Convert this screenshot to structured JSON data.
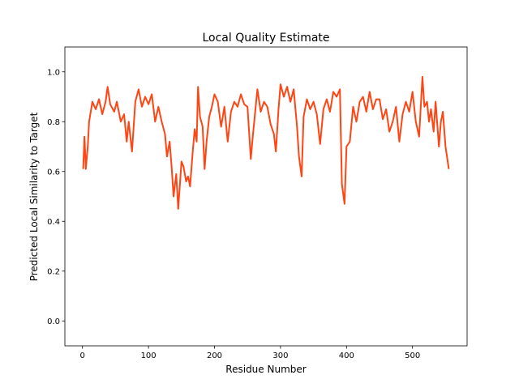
{
  "chart_data": {
    "type": "line",
    "title": "Local Quality Estimate",
    "x_label": "Residue Number",
    "y_label": "Predicted Local Similarity to Target",
    "x": [
      1,
      3,
      5,
      8,
      10,
      15,
      20,
      25,
      30,
      35,
      38,
      42,
      48,
      52,
      58,
      63,
      67,
      70,
      75,
      80,
      85,
      90,
      95,
      100,
      105,
      110,
      115,
      120,
      125,
      128,
      132,
      135,
      138,
      142,
      145,
      150,
      153,
      157,
      160,
      163,
      167,
      170,
      173,
      175,
      178,
      182,
      185,
      188,
      192,
      196,
      200,
      205,
      210,
      215,
      220,
      225,
      230,
      235,
      240,
      245,
      250,
      255,
      258,
      262,
      265,
      270,
      275,
      280,
      285,
      290,
      293,
      297,
      300,
      305,
      310,
      315,
      320,
      325,
      328,
      332,
      335,
      340,
      345,
      350,
      355,
      360,
      365,
      370,
      375,
      380,
      385,
      390,
      393,
      397,
      400,
      405,
      410,
      415,
      420,
      425,
      430,
      435,
      440,
      445,
      450,
      455,
      460,
      465,
      470,
      475,
      480,
      485,
      490,
      495,
      500,
      505,
      510,
      515,
      518,
      522,
      525,
      528,
      532,
      535,
      540,
      543,
      546,
      550,
      555
    ],
    "series": [
      {
        "color": "#ff4513",
        "values": [
          0.61,
          0.74,
          0.61,
          0.7,
          0.8,
          0.88,
          0.85,
          0.89,
          0.83,
          0.88,
          0.94,
          0.87,
          0.84,
          0.88,
          0.8,
          0.83,
          0.72,
          0.8,
          0.68,
          0.88,
          0.93,
          0.86,
          0.9,
          0.87,
          0.91,
          0.8,
          0.86,
          0.8,
          0.75,
          0.66,
          0.72,
          0.62,
          0.5,
          0.59,
          0.45,
          0.64,
          0.62,
          0.56,
          0.58,
          0.54,
          0.68,
          0.77,
          0.72,
          0.94,
          0.82,
          0.78,
          0.61,
          0.72,
          0.82,
          0.86,
          0.91,
          0.88,
          0.78,
          0.86,
          0.72,
          0.84,
          0.88,
          0.86,
          0.91,
          0.87,
          0.86,
          0.65,
          0.74,
          0.85,
          0.93,
          0.84,
          0.88,
          0.86,
          0.79,
          0.75,
          0.68,
          0.85,
          0.95,
          0.9,
          0.94,
          0.88,
          0.93,
          0.78,
          0.66,
          0.58,
          0.82,
          0.89,
          0.85,
          0.88,
          0.83,
          0.71,
          0.85,
          0.89,
          0.84,
          0.92,
          0.9,
          0.93,
          0.55,
          0.47,
          0.7,
          0.72,
          0.86,
          0.8,
          0.88,
          0.9,
          0.84,
          0.92,
          0.85,
          0.89,
          0.89,
          0.81,
          0.85,
          0.76,
          0.8,
          0.86,
          0.72,
          0.83,
          0.88,
          0.84,
          0.92,
          0.8,
          0.74,
          0.98,
          0.86,
          0.88,
          0.8,
          0.85,
          0.76,
          0.88,
          0.7,
          0.8,
          0.84,
          0.7,
          0.61
        ]
      }
    ],
    "xlim": [
      -26.7,
      582.7
    ],
    "ylim": [
      -0.1,
      1.1
    ],
    "xticks": [
      0,
      100,
      200,
      300,
      400,
      500
    ],
    "yticks": [
      {
        "value": 0,
        "label": "0.0"
      },
      0.2,
      0.4,
      0.6,
      0.8,
      {
        "value": 1,
        "label": "1.0"
      }
    ]
  }
}
